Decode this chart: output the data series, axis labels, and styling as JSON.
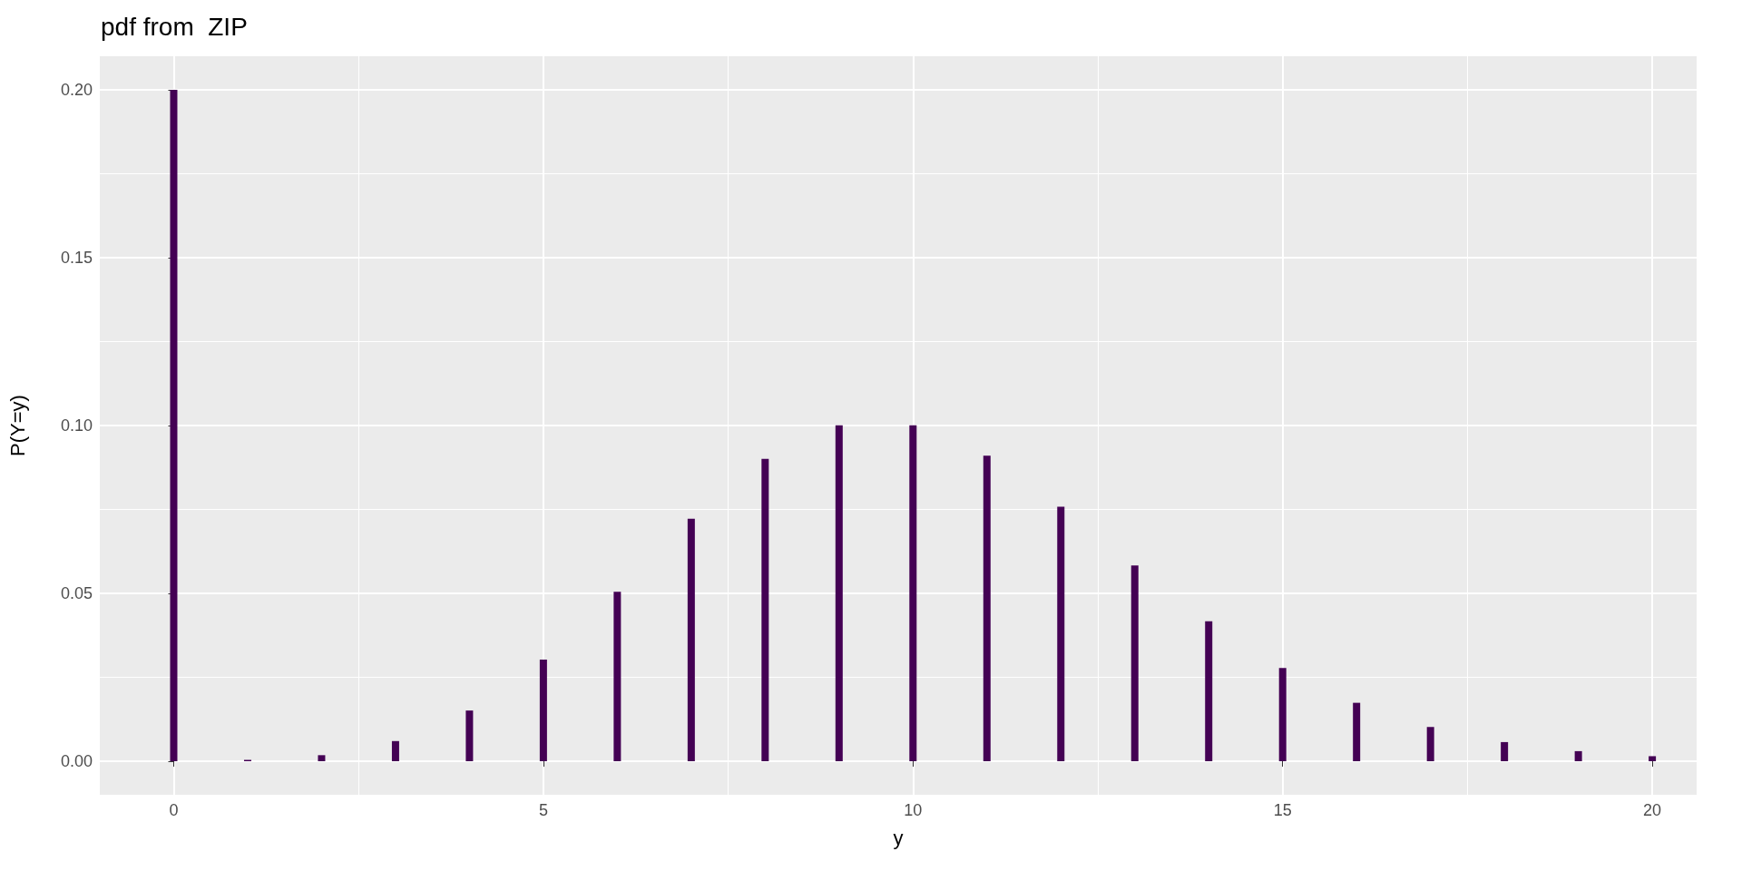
{
  "chart_data": {
    "type": "bar",
    "title": "pdf from  ZIP",
    "xlabel": "y",
    "ylabel": "P(Y=y)",
    "x": [
      0,
      1,
      2,
      3,
      4,
      5,
      6,
      7,
      8,
      9,
      10,
      11,
      12,
      13,
      14,
      15,
      16,
      17,
      18,
      19,
      20
    ],
    "values": [
      0.2,
      0.0004,
      0.0018,
      0.006,
      0.0151,
      0.0303,
      0.0505,
      0.0722,
      0.0901,
      0.1001,
      0.1001,
      0.091,
      0.0758,
      0.0583,
      0.0417,
      0.0278,
      0.0174,
      0.0102,
      0.0057,
      0.003,
      0.0015
    ],
    "color": "#440154",
    "xlim": [
      -1,
      20.6
    ],
    "xticks": [
      0,
      5,
      10,
      15,
      20
    ],
    "ylim": [
      -0.01,
      0.21
    ],
    "yticks": [
      {
        "value": 0,
        "label": "0.00"
      },
      {
        "value": 0.05,
        "label": "0.05"
      },
      {
        "value": 0.1,
        "label": "0.10"
      },
      {
        "value": 0.15,
        "label": "0.15"
      },
      {
        "value": 0.2,
        "label": "0.20"
      }
    ],
    "grid": true
  }
}
